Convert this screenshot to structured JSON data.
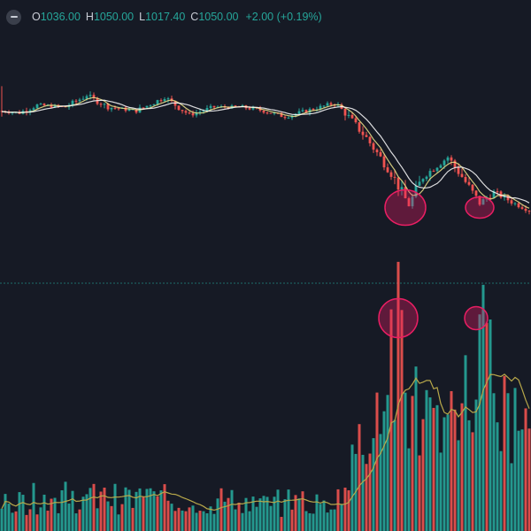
{
  "legend": {
    "open_label": "O",
    "open_value": "1036.00",
    "high_label": "H",
    "high_value": "1050.00",
    "low_label": "L",
    "low_value": "1017.40",
    "close_label": "C",
    "close_value": "1050.00",
    "change": "+2.00 (+0.19%)"
  },
  "colors": {
    "background": "#161a25",
    "up": "#26a69a",
    "down": "#ef5350",
    "ma_fast": "#f0e68c",
    "ma_slow": "#ffffff",
    "volume_ma": "#b8a84a",
    "highlight": "#e91e63",
    "pane_divider": "#26a69a"
  },
  "chart_data": [
    {
      "type": "candlestick",
      "pane": "price",
      "x_range": [
        0,
        150
      ],
      "y_range": [
        600,
        1200
      ],
      "key_points": [
        {
          "x": 0,
          "y": 1000
        },
        {
          "x": 5,
          "y": 995
        },
        {
          "x": 10,
          "y": 1015
        },
        {
          "x": 18,
          "y": 1010
        },
        {
          "x": 24,
          "y": 1040
        },
        {
          "x": 30,
          "y": 1010
        },
        {
          "x": 38,
          "y": 1000
        },
        {
          "x": 46,
          "y": 1035
        },
        {
          "x": 53,
          "y": 990
        },
        {
          "x": 60,
          "y": 1010
        },
        {
          "x": 68,
          "y": 1010
        },
        {
          "x": 74,
          "y": 1000
        },
        {
          "x": 80,
          "y": 985
        },
        {
          "x": 86,
          "y": 1000
        },
        {
          "x": 94,
          "y": 1020
        },
        {
          "x": 97,
          "y": 995
        },
        {
          "x": 103,
          "y": 930
        },
        {
          "x": 110,
          "y": 840
        },
        {
          "x": 115,
          "y": 755
        },
        {
          "x": 119,
          "y": 830
        },
        {
          "x": 126,
          "y": 880
        },
        {
          "x": 130,
          "y": 830
        },
        {
          "x": 135,
          "y": 760
        },
        {
          "x": 139,
          "y": 790
        },
        {
          "x": 145,
          "y": 760
        },
        {
          "x": 150,
          "y": 740
        }
      ],
      "moving_averages": [
        {
          "color_key": "ma_fast"
        },
        {
          "color_key": "ma_slow"
        }
      ],
      "annotations": [
        {
          "shape": "ellipse",
          "center_x": 114,
          "center_y": 750
        },
        {
          "shape": "ellipse",
          "center_x": 135,
          "center_y": 750
        }
      ]
    },
    {
      "type": "bar",
      "pane": "volume",
      "x_range": [
        0,
        150
      ],
      "y_range": [
        0,
        100
      ],
      "key_points": [
        {
          "x": 0,
          "y": 14
        },
        {
          "x": 20,
          "y": 16
        },
        {
          "x": 40,
          "y": 15
        },
        {
          "x": 55,
          "y": 14
        },
        {
          "x": 75,
          "y": 13
        },
        {
          "x": 90,
          "y": 13
        },
        {
          "x": 97,
          "y": 18
        },
        {
          "x": 103,
          "y": 50
        },
        {
          "x": 108,
          "y": 65
        },
        {
          "x": 112,
          "y": 85
        },
        {
          "x": 116,
          "y": 55
        },
        {
          "x": 122,
          "y": 48
        },
        {
          "x": 128,
          "y": 45
        },
        {
          "x": 133,
          "y": 70
        },
        {
          "x": 136,
          "y": 90
        },
        {
          "x": 140,
          "y": 55
        },
        {
          "x": 145,
          "y": 52
        },
        {
          "x": 150,
          "y": 50
        }
      ],
      "moving_average": {
        "color_key": "volume_ma"
      },
      "annotations": [
        {
          "shape": "circle",
          "center_x": 112,
          "center_y": 95
        },
        {
          "shape": "circle",
          "center_x": 134,
          "center_y": 95
        }
      ]
    }
  ]
}
